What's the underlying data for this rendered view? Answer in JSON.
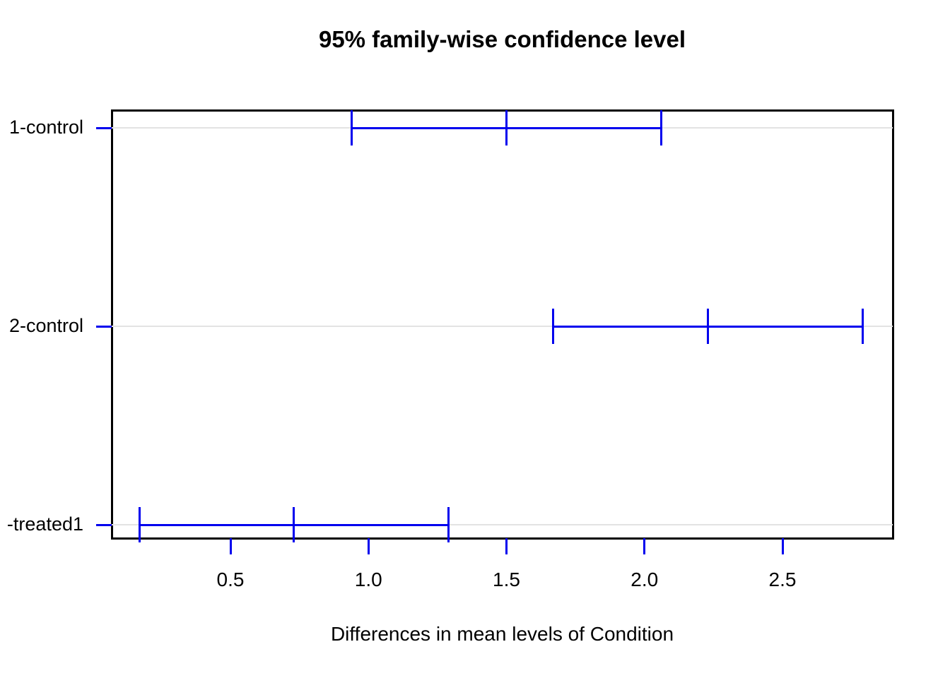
{
  "chart_data": {
    "type": "scatter",
    "plot_style": "tukey-hsd-horizontal-confidence-intervals",
    "title": "95% family-wise confidence level",
    "xlabel": "Differences in mean levels of Condition",
    "ylabel": "",
    "x_tick_labels": [
      "0.5",
      "1.0",
      "1.5",
      "2.0",
      "2.5"
    ],
    "x_tick_values": [
      0.5,
      1.0,
      1.5,
      2.0,
      2.5
    ],
    "xlim": [
      0.07,
      2.9
    ],
    "grid": "one light-gray horizontal reference line per comparison row",
    "legend_position": "none",
    "colors": {
      "interval": "#0000EE",
      "axis_ticks": "#0000EE",
      "reference_line": "#E3E3E3",
      "box_border": "#000000",
      "text": "#000000"
    },
    "comparisons": [
      {
        "label": "1-control",
        "diff": 1.5,
        "lwr": 0.94,
        "upr": 2.06
      },
      {
        "label": "2-control",
        "diff": 2.23,
        "lwr": 1.67,
        "upr": 2.79
      },
      {
        "label": "-treated1",
        "diff": 0.73,
        "lwr": 0.17,
        "upr": 1.29
      }
    ]
  }
}
